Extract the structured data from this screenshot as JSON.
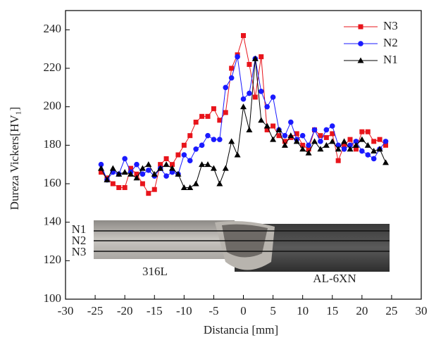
{
  "chart_data": {
    "type": "line",
    "xlabel": "Distancia [mm]",
    "ylabel": "Dureza Vickers[HV₁]",
    "xlim": [
      -30,
      30
    ],
    "xticks": [
      -30,
      -25,
      -20,
      -15,
      -10,
      -5,
      0,
      5,
      10,
      15,
      20,
      25,
      30
    ],
    "ylim": [
      100,
      250
    ],
    "yticks": [
      100,
      120,
      140,
      160,
      180,
      200,
      220,
      240
    ],
    "x": [
      -24,
      -23,
      -22,
      -21,
      -20,
      -19,
      -18,
      -17,
      -16,
      -15,
      -14,
      -13,
      -12,
      -11,
      -10,
      -9,
      -8,
      -7,
      -6,
      -5,
      -4,
      -3,
      -2,
      -1,
      0,
      1,
      2,
      3,
      4,
      5,
      6,
      7,
      8,
      9,
      10,
      11,
      12,
      13,
      14,
      15,
      16,
      17,
      18,
      19,
      20,
      21,
      22,
      23,
      24
    ],
    "series": [
      {
        "name": "N3",
        "color": "#e8141b",
        "marker": "square",
        "values": [
          166,
          163,
          160,
          158,
          158,
          168,
          165,
          160,
          155,
          157,
          170,
          173,
          170,
          175,
          180,
          185,
          192,
          195,
          195,
          199,
          193,
          197,
          220,
          227,
          237,
          222,
          205,
          226,
          188,
          190,
          185,
          182,
          184,
          186,
          180,
          178,
          188,
          185,
          184,
          186,
          172,
          180,
          183,
          178,
          187,
          187,
          182,
          183,
          180
        ]
      },
      {
        "name": "N2",
        "color": "#1a1aff",
        "marker": "circle",
        "values": [
          170,
          162,
          166,
          165,
          173,
          166,
          170,
          165,
          167,
          164,
          168,
          164,
          166,
          165,
          175,
          172,
          178,
          180,
          185,
          183,
          183,
          210,
          215,
          226,
          204,
          207,
          225,
          208,
          200,
          205,
          188,
          185,
          192,
          183,
          185,
          180,
          188,
          182,
          188,
          190,
          180,
          178,
          180,
          182,
          177,
          175,
          173,
          178,
          182
        ]
      },
      {
        "name": "N1",
        "color": "#000000",
        "marker": "triangle",
        "values": [
          168,
          162,
          168,
          165,
          166,
          165,
          163,
          168,
          170,
          165,
          168,
          170,
          168,
          165,
          158,
          158,
          160,
          170,
          170,
          168,
          160,
          168,
          182,
          175,
          200,
          188,
          225,
          193,
          190,
          183,
          188,
          180,
          185,
          182,
          178,
          176,
          182,
          178,
          180,
          182,
          178,
          182,
          178,
          180,
          183,
          180,
          177,
          178,
          171
        ]
      }
    ],
    "legend": "upper right",
    "annotations": [
      "N1",
      "N2",
      "N3",
      "316L",
      "AL-6XN"
    ]
  }
}
